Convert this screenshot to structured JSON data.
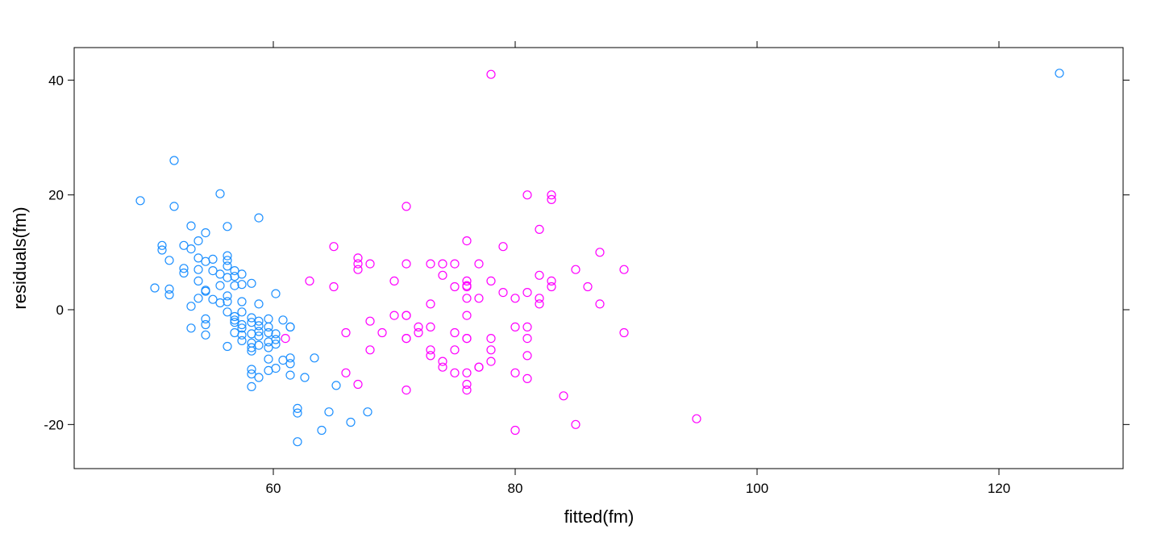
{
  "chart_data": {
    "type": "scatter",
    "title": "",
    "xlabel": "fitted(fm)",
    "ylabel": "residuals(fm)",
    "xlim": [
      44,
      130
    ],
    "ylim": [
      -27.5,
      46
    ],
    "x_ticks": [
      60,
      80,
      100,
      120
    ],
    "y_ticks": [
      -20,
      0,
      20,
      40
    ],
    "grid": false,
    "legend": null,
    "marker": "open-circle",
    "series": [
      {
        "name": "group-1",
        "color": "#1e90ff",
        "points": [
          [
            49.0,
            19.0
          ],
          [
            51.8,
            26.0
          ],
          [
            55.6,
            20.2
          ],
          [
            58.8,
            16.0
          ],
          [
            51.8,
            18.0
          ],
          [
            56.2,
            14.5
          ],
          [
            53.2,
            14.6
          ],
          [
            54.4,
            13.4
          ],
          [
            50.8,
            11.2
          ],
          [
            50.8,
            10.4
          ],
          [
            52.6,
            11.2
          ],
          [
            53.8,
            12.0
          ],
          [
            53.2,
            10.6
          ],
          [
            51.4,
            8.6
          ],
          [
            53.8,
            9.0
          ],
          [
            55.0,
            8.8
          ],
          [
            56.2,
            9.4
          ],
          [
            56.2,
            8.6
          ],
          [
            56.2,
            7.6
          ],
          [
            56.8,
            6.8
          ],
          [
            57.4,
            6.2
          ],
          [
            55.6,
            6.2
          ],
          [
            56.8,
            5.8
          ],
          [
            52.6,
            7.2
          ],
          [
            52.6,
            6.4
          ],
          [
            53.8,
            7.0
          ],
          [
            54.4,
            8.4
          ],
          [
            55.0,
            6.8
          ],
          [
            56.2,
            5.6
          ],
          [
            53.8,
            5.0
          ],
          [
            56.8,
            4.2
          ],
          [
            57.4,
            4.4
          ],
          [
            58.2,
            4.6
          ],
          [
            55.6,
            4.2
          ],
          [
            50.2,
            3.8
          ],
          [
            51.4,
            3.6
          ],
          [
            51.4,
            2.6
          ],
          [
            54.4,
            3.4
          ],
          [
            54.4,
            3.2
          ],
          [
            56.2,
            2.4
          ],
          [
            55.0,
            1.8
          ],
          [
            55.6,
            1.2
          ],
          [
            53.8,
            2.0
          ],
          [
            56.2,
            1.4
          ],
          [
            57.4,
            1.4
          ],
          [
            58.8,
            1.0
          ],
          [
            60.2,
            2.8
          ],
          [
            53.2,
            0.6
          ],
          [
            56.2,
            -0.4
          ],
          [
            57.4,
            -0.4
          ],
          [
            56.8,
            -1.2
          ],
          [
            56.8,
            -1.8
          ],
          [
            56.8,
            -2.2
          ],
          [
            57.4,
            -2.6
          ],
          [
            57.4,
            -3.2
          ],
          [
            58.2,
            -1.4
          ],
          [
            58.2,
            -2.2
          ],
          [
            58.8,
            -2.0
          ],
          [
            58.8,
            -2.8
          ],
          [
            59.6,
            -1.6
          ],
          [
            59.6,
            -3.0
          ],
          [
            60.8,
            -1.8
          ],
          [
            61.4,
            -3.0
          ],
          [
            54.4,
            -1.6
          ],
          [
            54.4,
            -2.6
          ],
          [
            53.2,
            -3.2
          ],
          [
            54.4,
            -4.4
          ],
          [
            56.8,
            -4.0
          ],
          [
            57.4,
            -4.4
          ],
          [
            57.4,
            -5.4
          ],
          [
            58.2,
            -4.2
          ],
          [
            58.2,
            -5.8
          ],
          [
            58.8,
            -3.8
          ],
          [
            58.8,
            -4.6
          ],
          [
            59.6,
            -4.0
          ],
          [
            59.6,
            -5.6
          ],
          [
            60.2,
            -4.2
          ],
          [
            60.2,
            -5.2
          ],
          [
            60.2,
            -6.0
          ],
          [
            59.6,
            -6.6
          ],
          [
            58.8,
            -6.2
          ],
          [
            58.2,
            -6.6
          ],
          [
            58.2,
            -7.2
          ],
          [
            56.2,
            -6.4
          ],
          [
            61.4,
            -3.0
          ],
          [
            59.6,
            -8.6
          ],
          [
            60.8,
            -8.8
          ],
          [
            61.4,
            -8.4
          ],
          [
            61.4,
            -9.4
          ],
          [
            63.4,
            -8.4
          ],
          [
            58.2,
            -10.4
          ],
          [
            58.2,
            -11.2
          ],
          [
            59.6,
            -10.6
          ],
          [
            60.2,
            -10.2
          ],
          [
            58.8,
            -11.8
          ],
          [
            61.4,
            -11.4
          ],
          [
            62.6,
            -11.8
          ],
          [
            58.2,
            -13.4
          ],
          [
            65.2,
            -13.2
          ],
          [
            62.0,
            -17.2
          ],
          [
            62.0,
            -18.0
          ],
          [
            64.6,
            -17.8
          ],
          [
            67.8,
            -17.8
          ],
          [
            66.4,
            -19.6
          ],
          [
            64.0,
            -21.0
          ],
          [
            62.0,
            -23.0
          ],
          [
            125.0,
            41.2
          ]
        ]
      },
      {
        "name": "group-2",
        "color": "#ff00ff",
        "points": [
          [
            78.0,
            41.0
          ],
          [
            81.0,
            20.0
          ],
          [
            83.0,
            20.0
          ],
          [
            83.0,
            19.2
          ],
          [
            71.0,
            18.0
          ],
          [
            82.0,
            14.0
          ],
          [
            76.0,
            12.0
          ],
          [
            65.0,
            11.0
          ],
          [
            79.0,
            11.0
          ],
          [
            87.0,
            10.0
          ],
          [
            67.0,
            9.0
          ],
          [
            67.0,
            8.0
          ],
          [
            67.0,
            7.0
          ],
          [
            68.0,
            8.0
          ],
          [
            71.0,
            8.0
          ],
          [
            73.0,
            8.0
          ],
          [
            74.0,
            8.0
          ],
          [
            75.0,
            8.0
          ],
          [
            77.0,
            8.0
          ],
          [
            85.0,
            7.0
          ],
          [
            89.0,
            7.0
          ],
          [
            74.0,
            6.0
          ],
          [
            82.0,
            6.0
          ],
          [
            63.0,
            5.0
          ],
          [
            70.0,
            5.0
          ],
          [
            76.0,
            5.0
          ],
          [
            78.0,
            5.0
          ],
          [
            83.0,
            5.0
          ],
          [
            65.0,
            4.0
          ],
          [
            75.0,
            4.0
          ],
          [
            76.0,
            4.0
          ],
          [
            76.0,
            4.2
          ],
          [
            83.0,
            4.0
          ],
          [
            86.0,
            4.0
          ],
          [
            79.0,
            3.0
          ],
          [
            81.0,
            3.0
          ],
          [
            76.0,
            2.0
          ],
          [
            77.0,
            2.0
          ],
          [
            80.0,
            2.0
          ],
          [
            82.0,
            2.0
          ],
          [
            73.0,
            1.0
          ],
          [
            82.0,
            1.0
          ],
          [
            87.0,
            1.0
          ],
          [
            70.0,
            -1.0
          ],
          [
            71.0,
            -1.0
          ],
          [
            71.0,
            -1.0
          ],
          [
            76.0,
            -1.0
          ],
          [
            68.0,
            -2.0
          ],
          [
            72.0,
            -3.0
          ],
          [
            73.0,
            -3.0
          ],
          [
            80.0,
            -3.0
          ],
          [
            81.0,
            -3.0
          ],
          [
            66.0,
            -4.0
          ],
          [
            69.0,
            -4.0
          ],
          [
            72.0,
            -4.0
          ],
          [
            75.0,
            -4.0
          ],
          [
            89.0,
            -4.0
          ],
          [
            61.0,
            -5.0
          ],
          [
            71.0,
            -5.0
          ],
          [
            71.0,
            -5.0
          ],
          [
            76.0,
            -5.0
          ],
          [
            76.0,
            -5.0
          ],
          [
            78.0,
            -5.0
          ],
          [
            81.0,
            -5.0
          ],
          [
            68.0,
            -7.0
          ],
          [
            73.0,
            -7.0
          ],
          [
            75.0,
            -7.0
          ],
          [
            78.0,
            -7.0
          ],
          [
            73.0,
            -8.0
          ],
          [
            81.0,
            -8.0
          ],
          [
            74.0,
            -9.0
          ],
          [
            78.0,
            -9.0
          ],
          [
            74.0,
            -10.0
          ],
          [
            77.0,
            -10.0
          ],
          [
            77.0,
            -10.0
          ],
          [
            66.0,
            -11.0
          ],
          [
            75.0,
            -11.0
          ],
          [
            76.0,
            -11.0
          ],
          [
            80.0,
            -11.0
          ],
          [
            81.0,
            -12.0
          ],
          [
            67.0,
            -13.0
          ],
          [
            76.0,
            -13.0
          ],
          [
            76.0,
            -14.0
          ],
          [
            71.0,
            -14.0
          ],
          [
            84.0,
            -15.0
          ],
          [
            95.0,
            -19.0
          ],
          [
            85.0,
            -20.0
          ],
          [
            80.0,
            -21.0
          ]
        ]
      }
    ]
  }
}
